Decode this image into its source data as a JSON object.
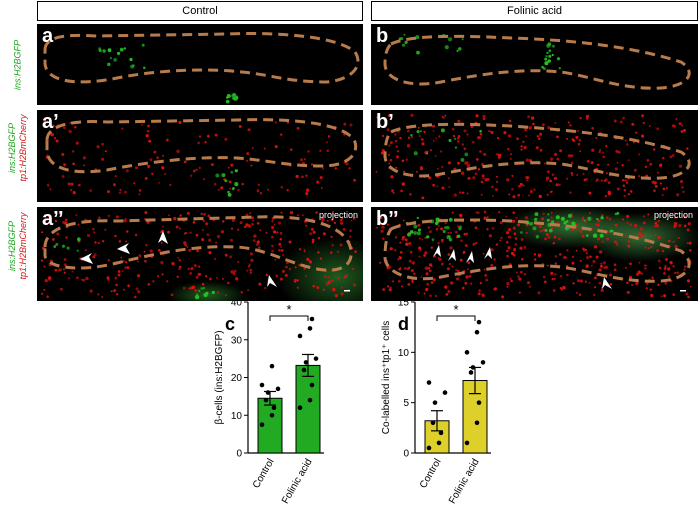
{
  "headers": {
    "control": "Control",
    "folinic": "Folinic acid"
  },
  "row_labels": {
    "row1": {
      "line1": "ins:H2BGFP"
    },
    "row2": {
      "line1": "ins:H2BGFP",
      "line2": "tp1:H2BmCherry"
    },
    "row3": {
      "line1": "ins:H2BGFP",
      "line2": "tp1:H2BmCherry"
    }
  },
  "panels": {
    "a": "a",
    "b": "b",
    "a1": "a’",
    "b1": "b’",
    "a2": "a’’",
    "b2": "b’’",
    "projection": "projection"
  },
  "colors": {
    "outline": "#b87c4c",
    "gfp": "#22c322",
    "mcherry": "#e01010",
    "bar_c": "#22aa22",
    "bar_d": "#ddd02a"
  },
  "chart_data": [
    {
      "type": "bar",
      "panel_letter": "c",
      "categories": [
        "Control",
        "Folinic acid"
      ],
      "values": [
        14.5,
        23.2
      ],
      "errors": [
        1.8,
        2.9
      ],
      "points": [
        [
          7.5,
          10,
          12,
          14,
          16,
          17,
          18,
          23
        ],
        [
          12,
          14,
          18,
          22,
          24,
          25,
          31,
          33,
          35.5
        ]
      ],
      "ylabel": "β-cells (ins:H2BGFP)",
      "ylim": [
        0,
        40
      ],
      "yticks": [
        0,
        10,
        20,
        30,
        40
      ],
      "significance": "*",
      "bar_color": "#22aa22"
    },
    {
      "type": "bar",
      "panel_letter": "d",
      "categories": [
        "Control",
        "Folinic acid"
      ],
      "values": [
        3.2,
        7.2
      ],
      "errors": [
        1.0,
        1.3
      ],
      "points": [
        [
          0.5,
          1,
          2,
          3,
          5,
          6,
          7
        ],
        [
          1,
          3,
          5,
          8,
          8.5,
          9,
          10,
          12,
          13
        ]
      ],
      "ylabel": "Co-labelled ins⁺tp1⁺ cells",
      "ylim": [
        0,
        15
      ],
      "yticks": [
        0,
        5,
        10,
        15
      ],
      "significance": "*",
      "bar_color": "#ddd02a"
    }
  ]
}
